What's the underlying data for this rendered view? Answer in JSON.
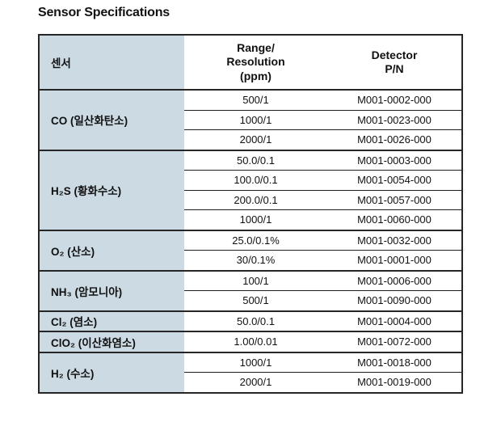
{
  "title": "Sensor Specifications",
  "colors": {
    "sensor_column_fill": "#ccdae3",
    "border": "#262626",
    "text": "#111111",
    "background": "#ffffff"
  },
  "table": {
    "header": {
      "sensor": "센서",
      "range": "Range/\nResolution\n(ppm)",
      "detector": "Detector\nP/N"
    },
    "groups": [
      {
        "sensor": "CO (일산화탄소)",
        "rows": [
          {
            "range": "500/1",
            "pn": "M001-0002-000"
          },
          {
            "range": "1000/1",
            "pn": "M001-0023-000"
          },
          {
            "range": "2000/1",
            "pn": "M001-0026-000"
          }
        ]
      },
      {
        "sensor": "H₂S (황화수소)",
        "rows": [
          {
            "range": "50.0/0.1",
            "pn": "M001-0003-000"
          },
          {
            "range": "100.0/0.1",
            "pn": "M001-0054-000"
          },
          {
            "range": "200.0/0.1",
            "pn": "M001-0057-000"
          },
          {
            "range": "1000/1",
            "pn": "M001-0060-000"
          }
        ]
      },
      {
        "sensor": "O₂ (산소)",
        "rows": [
          {
            "range": "25.0/0.1%",
            "pn": "M001-0032-000"
          },
          {
            "range": "30/0.1%",
            "pn": "M001-0001-000"
          }
        ]
      },
      {
        "sensor": "NH₃ (암모니아)",
        "rows": [
          {
            "range": "100/1",
            "pn": "M001-0006-000"
          },
          {
            "range": "500/1",
            "pn": "M001-0090-000"
          }
        ]
      },
      {
        "sensor": "Cl₂ (염소)",
        "rows": [
          {
            "range": "50.0/0.1",
            "pn": "M001-0004-000"
          }
        ]
      },
      {
        "sensor": "ClO₂ (이산화염소)",
        "rows": [
          {
            "range": "1.00/0.01",
            "pn": "M001-0072-000"
          }
        ]
      },
      {
        "sensor": "H₂ (수소)",
        "rows": [
          {
            "range": "1000/1",
            "pn": "M001-0018-000"
          },
          {
            "range": "2000/1",
            "pn": "M001-0019-000"
          }
        ]
      }
    ]
  }
}
